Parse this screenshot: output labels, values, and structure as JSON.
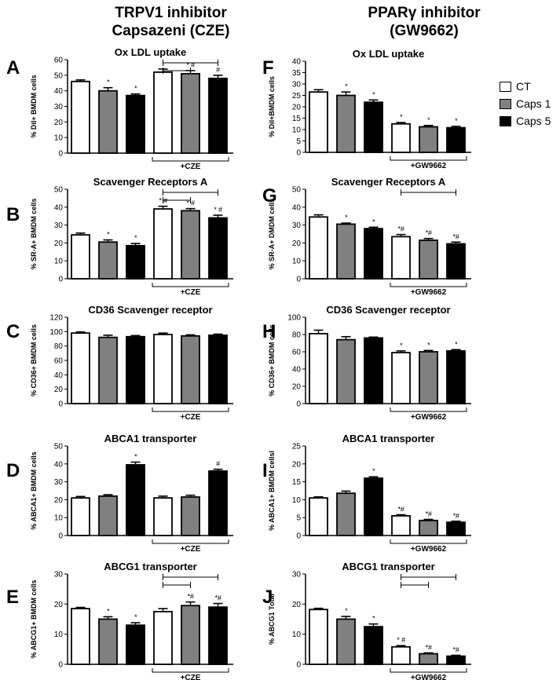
{
  "columns": [
    {
      "line1": "TRPV1 inhibitor",
      "line2": "Capsazeni (CZE)"
    },
    {
      "line1": "PPARγ inhibitor",
      "line2": "(GW9662)"
    }
  ],
  "legend": [
    {
      "label": "CT",
      "color": "#ffffff"
    },
    {
      "label": "Caps 1",
      "color": "#808080"
    },
    {
      "label": "Caps 5",
      "color": "#000000"
    }
  ],
  "chart_data": [
    {
      "panel": "A",
      "type": "bar",
      "title": "Ox LDL uptake",
      "ylabel": "% DiI+  BMDM cells",
      "ylim": [
        0,
        60
      ],
      "yticks": [
        0,
        10,
        20,
        30,
        40,
        50,
        60
      ],
      "treatment": "+CZE",
      "series": [
        {
          "name": "CT",
          "values": [
            46,
            52
          ]
        },
        {
          "name": "Caps 1",
          "values": [
            40,
            51
          ]
        },
        {
          "name": "Caps 5",
          "values": [
            37,
            48
          ]
        }
      ],
      "errors": [
        [
          1,
          2
        ],
        [
          2,
          2
        ],
        [
          1,
          2
        ]
      ],
      "markers": [
        [
          "",
          ""
        ],
        [
          "*",
          "* #"
        ],
        [
          "*",
          "#"
        ]
      ],
      "brackets": [
        [
          "CT",
          "Caps 1"
        ],
        [
          "CT",
          "Caps 5"
        ]
      ]
    },
    {
      "panel": "B",
      "type": "bar",
      "title": "Scavenger Receptors A",
      "ylabel": "% SR-A+ BMDM cells",
      "ylim": [
        0,
        50
      ],
      "yticks": [
        0,
        10,
        20,
        30,
        40,
        50
      ],
      "treatment": "+CZE",
      "series": [
        {
          "name": "CT",
          "values": [
            24.5,
            39
          ]
        },
        {
          "name": "Caps 1",
          "values": [
            20.5,
            38
          ]
        },
        {
          "name": "Caps 5",
          "values": [
            18.5,
            34
          ]
        }
      ],
      "errors": [
        [
          1,
          1.5
        ],
        [
          1.2,
          1.2
        ],
        [
          1.2,
          1.5
        ]
      ],
      "markers": [
        [
          "",
          "* #"
        ],
        [
          "*",
          "* #"
        ],
        [
          "*",
          "* #"
        ]
      ],
      "brackets": [
        [
          "CT",
          "Caps 1"
        ],
        [
          "CT",
          "Caps 5"
        ]
      ]
    },
    {
      "panel": "C",
      "type": "bar",
      "title": "CD36 Scavenger receptor",
      "ylabel": "% CD36+ BMDM cells",
      "ylim": [
        0,
        120
      ],
      "yticks": [
        0,
        20,
        40,
        60,
        80,
        100,
        120
      ],
      "treatment": "+CZE",
      "series": [
        {
          "name": "CT",
          "values": [
            98,
            96
          ]
        },
        {
          "name": "Caps 1",
          "values": [
            92,
            94
          ]
        },
        {
          "name": "Caps 5",
          "values": [
            93,
            95
          ]
        }
      ],
      "errors": [
        [
          1.5,
          2
        ],
        [
          3,
          1.5
        ],
        [
          1.5,
          1.5
        ]
      ],
      "markers": [
        [
          "",
          ""
        ],
        [
          "",
          ""
        ],
        [
          "",
          ""
        ]
      ],
      "brackets": []
    },
    {
      "panel": "D",
      "type": "bar",
      "title": "ABCA1 transporter",
      "ylabel": "% ABCA1+ BMDM cells",
      "ylim": [
        0,
        50
      ],
      "yticks": [
        0,
        10,
        20,
        30,
        40,
        50
      ],
      "treatment": "+CZE",
      "series": [
        {
          "name": "CT",
          "values": [
            21,
            21
          ]
        },
        {
          "name": "Caps 1",
          "values": [
            22,
            21.5
          ]
        },
        {
          "name": "Caps 5",
          "values": [
            39.5,
            36
          ]
        }
      ],
      "errors": [
        [
          0.8,
          1
        ],
        [
          0.8,
          1
        ],
        [
          1.5,
          1
        ]
      ],
      "markers": [
        [
          "",
          ""
        ],
        [
          "",
          ""
        ],
        [
          "*",
          "#"
        ]
      ],
      "brackets": []
    },
    {
      "panel": "E",
      "type": "bar",
      "title": "ABCG1 transporter",
      "ylabel": "% ABCG1+ BMDM cells",
      "ylim": [
        0,
        30
      ],
      "yticks": [
        0,
        10,
        20,
        30
      ],
      "treatment": "+CZE",
      "series": [
        {
          "name": "CT",
          "values": [
            18.5,
            17.5
          ]
        },
        {
          "name": "Caps 1",
          "values": [
            15,
            19.5
          ]
        },
        {
          "name": "Caps 5",
          "values": [
            13,
            19
          ]
        }
      ],
      "errors": [
        [
          0.4,
          1
        ],
        [
          0.8,
          1.2
        ],
        [
          0.8,
          1.2
        ]
      ],
      "markers": [
        [
          "",
          ""
        ],
        [
          "*",
          "*#"
        ],
        [
          "*",
          "*#"
        ]
      ],
      "brackets": [
        [
          "CT",
          "Caps 1"
        ],
        [
          "CT",
          "Caps 5"
        ]
      ]
    },
    {
      "panel": "F",
      "type": "bar",
      "title": "Ox LDL uptake",
      "ylabel": "% DiI+BMDM cells",
      "ylim": [
        0,
        40
      ],
      "yticks": [
        0,
        5,
        10,
        15,
        20,
        25,
        30,
        35,
        40
      ],
      "treatment": "+GW9662",
      "series": [
        {
          "name": "CT",
          "values": [
            26.5,
            12.5
          ]
        },
        {
          "name": "Caps 1",
          "values": [
            25,
            11.2
          ]
        },
        {
          "name": "Caps 5",
          "values": [
            22,
            10.8
          ]
        }
      ],
      "errors": [
        [
          1,
          0.6
        ],
        [
          1.5,
          0.6
        ],
        [
          1,
          0.6
        ]
      ],
      "markers": [
        [
          "",
          "*"
        ],
        [
          "*",
          "*"
        ],
        [
          "*",
          "*"
        ]
      ],
      "brackets": []
    },
    {
      "panel": "G",
      "type": "bar",
      "title": "Scavenger Receptors A",
      "ylabel": "% SR-A+ DMDM cells",
      "ylim": [
        0,
        50
      ],
      "yticks": [
        0,
        10,
        20,
        30,
        40,
        50
      ],
      "treatment": "+GW9662",
      "series": [
        {
          "name": "CT",
          "values": [
            34.5,
            23.5
          ]
        },
        {
          "name": "Caps 1",
          "values": [
            30.5,
            21.5
          ]
        },
        {
          "name": "Caps 5",
          "values": [
            28,
            19.5
          ]
        }
      ],
      "errors": [
        [
          1.2,
          1.2
        ],
        [
          0.6,
          1
        ],
        [
          0.8,
          1
        ]
      ],
      "markers": [
        [
          "",
          "*#"
        ],
        [
          "*",
          "*#"
        ],
        [
          "*",
          "*#"
        ]
      ],
      "brackets": [
        [
          "CT",
          "Caps 5"
        ]
      ]
    },
    {
      "panel": "H",
      "type": "bar",
      "title": "CD36 Scavenger receptor",
      "ylabel": "% CD36+ BMDM cells",
      "ylim": [
        0,
        100
      ],
      "yticks": [
        0,
        20,
        40,
        60,
        80,
        100
      ],
      "treatment": "+GW9662",
      "series": [
        {
          "name": "CT",
          "values": [
            81,
            59
          ]
        },
        {
          "name": "Caps 1",
          "values": [
            74,
            60
          ]
        },
        {
          "name": "Caps 5",
          "values": [
            76,
            61
          ]
        }
      ],
      "errors": [
        [
          4,
          2
        ],
        [
          3.5,
          1.5
        ],
        [
          1,
          1.5
        ]
      ],
      "markers": [
        [
          "",
          "*"
        ],
        [
          "",
          "*"
        ],
        [
          "",
          "*"
        ]
      ],
      "brackets": []
    },
    {
      "panel": "I",
      "type": "bar",
      "title": "ABCA1 transporter",
      "ylabel": "% ABCA1+ BMDM cellsl",
      "ylim": [
        0,
        25
      ],
      "yticks": [
        0,
        5,
        10,
        15,
        20,
        25
      ],
      "treatment": "+GW9662",
      "series": [
        {
          "name": "CT",
          "values": [
            10.5,
            5.5
          ]
        },
        {
          "name": "Caps 1",
          "values": [
            11.8,
            4.2
          ]
        },
        {
          "name": "Caps 5",
          "values": [
            16,
            3.7
          ]
        }
      ],
      "errors": [
        [
          0.3,
          0.3
        ],
        [
          0.6,
          0.3
        ],
        [
          0.4,
          0.3
        ]
      ],
      "markers": [
        [
          "",
          "*#"
        ],
        [
          "",
          "*#"
        ],
        [
          "*",
          "*#"
        ]
      ],
      "brackets": []
    },
    {
      "panel": "J",
      "type": "bar",
      "title": "ABCG1 transporter",
      "ylabel": "% ABCG1 Total",
      "ylim": [
        0,
        30
      ],
      "yticks": [
        0,
        10,
        20,
        30
      ],
      "treatment": "+GW9662",
      "series": [
        {
          "name": "CT",
          "values": [
            18.2,
            5.8
          ]
        },
        {
          "name": "Caps 1",
          "values": [
            15,
            3.5
          ]
        },
        {
          "name": "Caps 5",
          "values": [
            12.5,
            2.7
          ]
        }
      ],
      "errors": [
        [
          0.4,
          0.4
        ],
        [
          0.9,
          0.3
        ],
        [
          0.9,
          0.3
        ]
      ],
      "markers": [
        [
          "",
          "* #"
        ],
        [
          "*",
          "*#"
        ],
        [
          "*",
          "*#"
        ]
      ],
      "brackets": [
        [
          "CT",
          "Caps 1"
        ],
        [
          "CT",
          "Caps 5"
        ]
      ]
    }
  ]
}
